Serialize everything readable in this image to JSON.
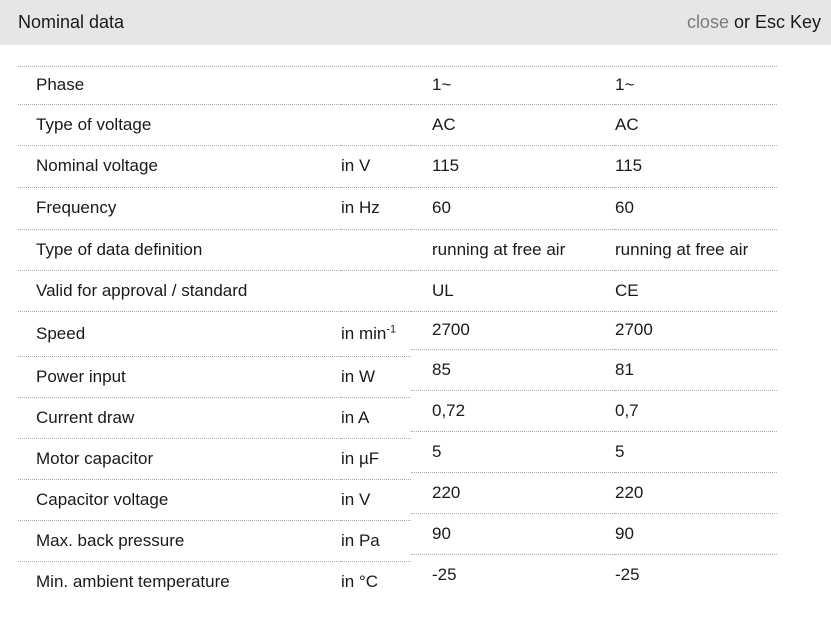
{
  "header": {
    "title": "Nominal data",
    "close_label": "close",
    "close_suffix": " or Esc Key"
  },
  "table": {
    "rows": [
      {
        "label": "Phase",
        "unit": "",
        "unit_sup": "",
        "values": [
          "1~",
          "1~"
        ]
      },
      {
        "label": "Type of voltage",
        "unit": "",
        "unit_sup": "",
        "values": [
          "AC",
          "AC"
        ]
      },
      {
        "label": "Nominal voltage",
        "unit": "in V",
        "unit_sup": "",
        "values": [
          "115",
          "115"
        ]
      },
      {
        "label": "Frequency",
        "unit": "in Hz",
        "unit_sup": "",
        "values": [
          "60",
          "60"
        ]
      },
      {
        "label": "Type of data definition",
        "unit": "",
        "unit_sup": "",
        "values": [
          "running at free air",
          "running at free air"
        ]
      },
      {
        "label": "Valid for approval / standard",
        "unit": "",
        "unit_sup": "",
        "values": [
          "UL",
          "CE"
        ]
      },
      {
        "label": "Speed",
        "unit": "in min",
        "unit_sup": "-1",
        "values": [
          "2700",
          "2700"
        ]
      },
      {
        "label": "Power input",
        "unit": "in W",
        "unit_sup": "",
        "values": [
          "85",
          "81"
        ]
      },
      {
        "label": "Current draw",
        "unit": "in A",
        "unit_sup": "",
        "values": [
          "0,72",
          "0,7"
        ]
      },
      {
        "label": "Motor capacitor",
        "unit": "in µF",
        "unit_sup": "",
        "values": [
          "5",
          "5"
        ]
      },
      {
        "label": "Capacitor voltage",
        "unit": "in V",
        "unit_sup": "",
        "values": [
          "220",
          "220"
        ]
      },
      {
        "label": "Max. back pressure",
        "unit": "in Pa",
        "unit_sup": "",
        "values": [
          "90",
          "90"
        ]
      },
      {
        "label": "Min. ambient temperature",
        "unit": "in °C",
        "unit_sup": "",
        "values": [
          "-25",
          "-25"
        ]
      }
    ]
  },
  "colors": {
    "header_bg": "#e6e6e6",
    "close_link_gray": "#7d7d7d",
    "text": "#1a1a1a",
    "divider_dotted": "#ababab",
    "page_bg": "#ffffff"
  }
}
